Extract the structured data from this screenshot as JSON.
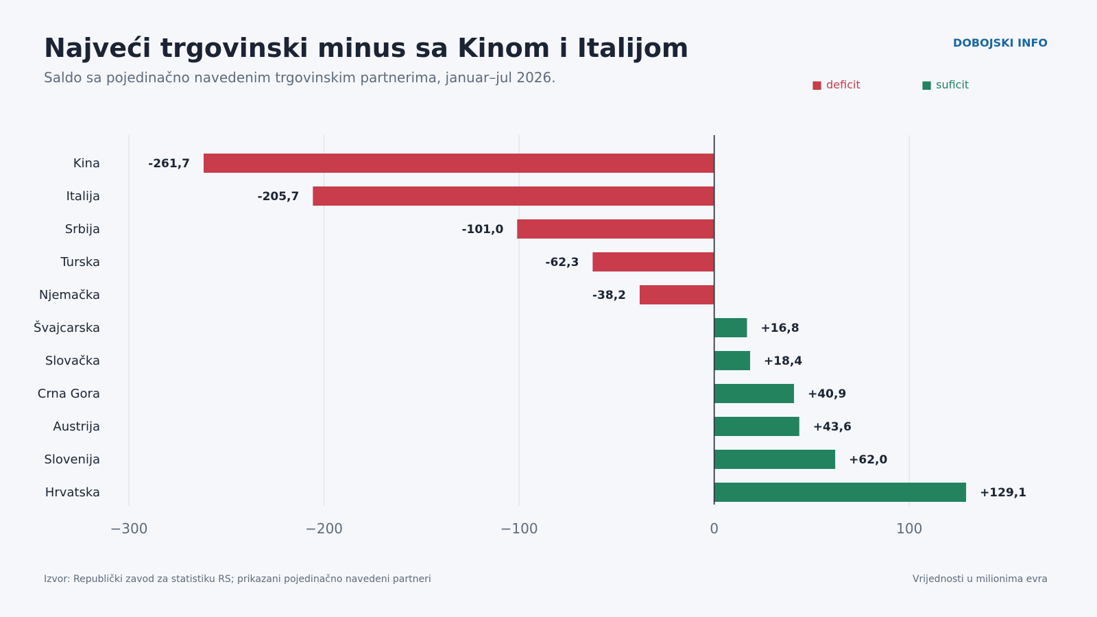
{
  "header": {
    "title": "Najveći trgovinski minus sa Kinom i Italijom",
    "subtitle": "Saldo sa pojedinačno navedenim trgovinskim partnerima, januar–jul 2026.",
    "brand": "DOBOJSKI INFO"
  },
  "legend": {
    "deficit_label": "deficit",
    "surplus_label": "suficit",
    "deficit_color": "#c83c4b",
    "surplus_color": "#23835f",
    "placement": "top-right"
  },
  "footer": {
    "source": "Izvor: Republički zavod za statistiku RS; prikazani pojedinačno navedeni partneri",
    "unit_note": "Vrijednosti u milionima evra"
  },
  "chart_data": {
    "type": "bar",
    "orientation": "horizontal",
    "categories": [
      "Kina",
      "Italija",
      "Srbija",
      "Turska",
      "Njemačka",
      "Švajcarska",
      "Slovačka",
      "Crna Gora",
      "Austrija",
      "Slovenija",
      "Hrvatska"
    ],
    "values": [
      -261.7,
      -205.7,
      -101.0,
      -62.3,
      -38.2,
      16.8,
      18.4,
      40.9,
      43.6,
      62.0,
      129.1
    ],
    "value_labels": [
      "-261,7",
      "-205,7",
      "-101,0",
      "-62,3",
      "-38,2",
      "+16,8",
      "+18,4",
      "+40,9",
      "+43,6",
      "+62,0",
      "+129,1"
    ],
    "xlim": [
      -300,
      160
    ],
    "xticks": [
      -300,
      -200,
      -100,
      0,
      100
    ],
    "xtick_labels": [
      "−300",
      "−200",
      "−100",
      "0",
      "100"
    ],
    "grid": true,
    "title": "Najveći trgovinski minus sa Kinom i Italijom",
    "xlabel": "",
    "ylabel": ""
  }
}
